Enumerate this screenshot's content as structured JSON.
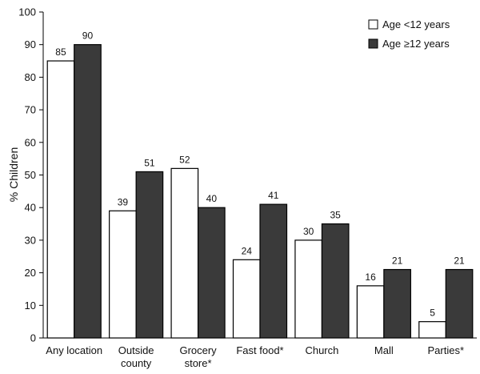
{
  "chart_data": {
    "type": "bar",
    "ylabel": "% Children",
    "ylim": [
      0,
      100
    ],
    "yticks": [
      0,
      10,
      20,
      30,
      40,
      50,
      60,
      70,
      80,
      90,
      100
    ],
    "categories": [
      [
        "Any location"
      ],
      [
        "Outside",
        "county"
      ],
      [
        "Grocery",
        "store*"
      ],
      [
        "Fast food*"
      ],
      [
        "Church"
      ],
      [
        "Mall"
      ],
      [
        "Parties*"
      ]
    ],
    "series": [
      {
        "name": "Age <12 years",
        "color": "#ffffff",
        "values": [
          85,
          39,
          52,
          24,
          30,
          16,
          5
        ]
      },
      {
        "name": "Age ≥12 years",
        "color": "#3a3a3a",
        "values": [
          90,
          51,
          40,
          41,
          35,
          21,
          21
        ]
      }
    ],
    "legend_position": "top-right",
    "grid": false
  }
}
